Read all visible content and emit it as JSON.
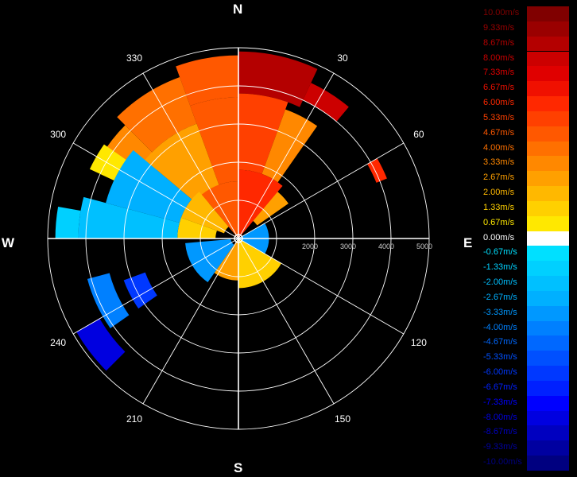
{
  "chart_data": {
    "type": "polar-radial-velocity",
    "directions": {
      "north": "N",
      "east": "E",
      "south": "S",
      "west": "W"
    },
    "azimuth_ticks": [
      "30",
      "60",
      "120",
      "150",
      "210",
      "240",
      "300",
      "330"
    ],
    "range_ticks": [
      "2000",
      "3000",
      "4000",
      "5000"
    ],
    "range_max": 5000,
    "legend": {
      "labels": [
        "10.00m/s",
        "9.33m/s",
        "8.67m/s",
        "8.00m/s",
        "7.33m/s",
        "6.67m/s",
        "6.00m/s",
        "5.33m/s",
        "4.67m/s",
        "4.00m/s",
        "3.33m/s",
        "2.67m/s",
        "2.00m/s",
        "1.33m/s",
        "0.67m/s",
        "0.00m/s",
        "-0.67m/s",
        "-1.33m/s",
        "-2.00m/s",
        "-2.67m/s",
        "-3.33m/s",
        "-4.00m/s",
        "-4.67m/s",
        "-5.33m/s",
        "-6.00m/s",
        "-6.67m/s",
        "-7.33m/s",
        "-8.00m/s",
        "-8.67m/s",
        "-9.33m/s",
        "-10.00m/s"
      ],
      "colors": [
        "#800000",
        "#9a0000",
        "#b40000",
        "#cc0000",
        "#e00000",
        "#f01000",
        "#ff2800",
        "#ff4000",
        "#ff5800",
        "#ff7000",
        "#ff8800",
        "#ffa000",
        "#ffb800",
        "#ffd000",
        "#ffe800",
        "#ffffff",
        "#00e0ff",
        "#00d0ff",
        "#00c0ff",
        "#00b0ff",
        "#0098ff",
        "#0080ff",
        "#0068ff",
        "#0050ff",
        "#0038ff",
        "#0020ff",
        "#0000ff",
        "#0000e0",
        "#0000c0",
        "#0000a0",
        "#000080"
      ]
    },
    "velocity_sectors": [
      {
        "az_start": 0,
        "az_end": 25,
        "r_start": 3800,
        "r_end": 4900,
        "velocity": 9.0
      },
      {
        "az_start": 25,
        "az_end": 40,
        "r_start": 4000,
        "r_end": 4500,
        "velocity": 8.0
      },
      {
        "az_start": 340,
        "az_end": 360,
        "r_start": 3700,
        "r_end": 4800,
        "velocity": 5.0
      },
      {
        "az_start": 315,
        "az_end": 340,
        "r_start": 3200,
        "r_end": 4500,
        "velocity": 4.0
      },
      {
        "az_start": 300,
        "az_end": 315,
        "r_start": 2800,
        "r_end": 4200,
        "velocity": 3.5
      },
      {
        "az_start": 0,
        "az_end": 20,
        "r_start": 1800,
        "r_end": 3800,
        "velocity": 5.5
      },
      {
        "az_start": 340,
        "az_end": 360,
        "r_start": 1500,
        "r_end": 3700,
        "velocity": 4.5
      },
      {
        "az_start": 310,
        "az_end": 340,
        "r_start": 1200,
        "r_end": 3200,
        "velocity": 3.0
      },
      {
        "az_start": 20,
        "az_end": 35,
        "r_start": 1800,
        "r_end": 3600,
        "velocity": 3.5
      },
      {
        "az_start": 35,
        "az_end": 55,
        "r_start": 600,
        "r_end": 1600,
        "velocity": 3.0
      },
      {
        "az_start": 0,
        "az_end": 40,
        "r_start": 0,
        "r_end": 1800,
        "velocity": 6.0
      },
      {
        "az_start": 320,
        "az_end": 360,
        "r_start": 0,
        "r_end": 1500,
        "velocity": 5.0
      },
      {
        "az_start": 290,
        "az_end": 320,
        "r_start": 400,
        "r_end": 1600,
        "velocity": 2.0
      },
      {
        "az_start": 270,
        "az_end": 290,
        "r_start": 600,
        "r_end": 1600,
        "velocity": 1.5
      },
      {
        "az_start": 285,
        "az_end": 310,
        "r_start": 1600,
        "r_end": 3600,
        "velocity": -2.5
      },
      {
        "az_start": 270,
        "az_end": 285,
        "r_start": 1600,
        "r_end": 4200,
        "velocity": -2.0
      },
      {
        "az_start": 270,
        "az_end": 280,
        "r_start": 4200,
        "r_end": 4800,
        "velocity": -1.5
      },
      {
        "az_start": 295,
        "az_end": 305,
        "r_start": 3600,
        "r_end": 4300,
        "velocity": 0.5
      },
      {
        "az_start": 60,
        "az_end": 120,
        "r_start": 0,
        "r_end": 800,
        "velocity": -3.0
      },
      {
        "az_start": 120,
        "az_end": 180,
        "r_start": 0,
        "r_end": 1300,
        "velocity": 1.5
      },
      {
        "az_start": 180,
        "az_end": 215,
        "r_start": 0,
        "r_end": 1100,
        "velocity": 2.5
      },
      {
        "az_start": 215,
        "az_end": 265,
        "r_start": 200,
        "r_end": 1400,
        "velocity": -3.5
      },
      {
        "az_start": 235,
        "az_end": 250,
        "r_start": 2600,
        "r_end": 3200,
        "velocity": -6.0
      },
      {
        "az_start": 235,
        "az_end": 255,
        "r_start": 3500,
        "r_end": 4100,
        "velocity": -4.0
      },
      {
        "az_start": 225,
        "az_end": 240,
        "r_start": 4200,
        "r_end": 4900,
        "velocity": -8.0
      },
      {
        "az_start": 60,
        "az_end": 68,
        "r_start": 3900,
        "r_end": 4200,
        "velocity": 6.0
      }
    ]
  }
}
